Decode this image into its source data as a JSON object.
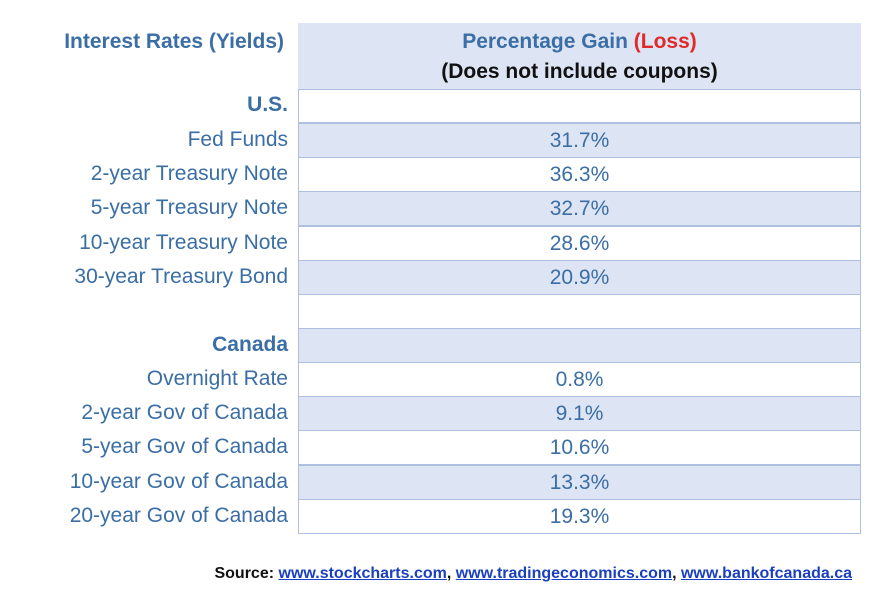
{
  "header": {
    "left_title": "Interest Rates (Yields)",
    "col_title": "Percentage Gain",
    "col_title_loss": "(Loss)",
    "col_subtitle": "(Does not include coupons)"
  },
  "us": {
    "heading": "U.S.",
    "rows": [
      {
        "label": "Fed Funds",
        "value": "31.7%"
      },
      {
        "label": "2-year Treasury Note",
        "value": "36.3%"
      },
      {
        "label": "5-year Treasury Note",
        "value": "32.7%"
      },
      {
        "label": "10-year Treasury Note",
        "value": "28.6%"
      },
      {
        "label": "30-year Treasury Bond",
        "value": "20.9%"
      }
    ]
  },
  "canada": {
    "heading": "Canada",
    "rows": [
      {
        "label": "Overnight Rate",
        "value": "0.8%"
      },
      {
        "label": "2-year Gov of Canada",
        "value": "9.1%"
      },
      {
        "label": "5-year Gov of Canada",
        "value": "10.6%"
      },
      {
        "label": "10-year Gov of Canada",
        "value": "13.3%"
      },
      {
        "label": "20-year Gov of Canada",
        "value": "19.3%"
      }
    ]
  },
  "source": {
    "label": "Source:",
    "links": [
      "www.stockcharts.com",
      "www.tradingeconomics.com",
      "www.bankofcanada.ca"
    ],
    "separator": ", "
  },
  "colors": {
    "text_blue": "#3a6ea5",
    "loss_red": "#e02a2a",
    "shade": "#dde4f4",
    "link_blue": "#1a3fbf"
  }
}
